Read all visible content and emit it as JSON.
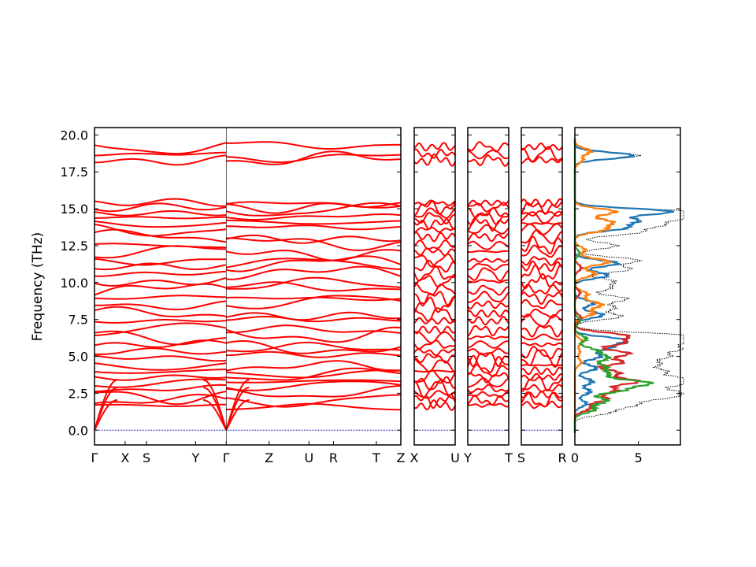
{
  "chart_data": [
    {
      "type": "line",
      "ylabel": "Frequency (THz)",
      "ylim": [
        -1.0,
        20.5
      ],
      "yticks": [
        0.0,
        2.5,
        5.0,
        7.5,
        10.0,
        12.5,
        15.0,
        17.5,
        20.0
      ],
      "ytick_labels": [
        "0.0",
        "2.5",
        "5.0",
        "7.5",
        "10.0",
        "12.5",
        "15.0",
        "17.5",
        "20.0"
      ],
      "line_color": "#ff0000",
      "zero_line_color": "#0000cc",
      "panels": [
        {
          "name": "path-gamma-to-z",
          "xticks": [
            0,
            0.1,
            0.17,
            0.33,
            0.43,
            0.57,
            0.7,
            0.78,
            0.92,
            1
          ],
          "xtick_labels": [
            "Γ",
            "X",
            "S",
            "Y",
            "Γ",
            "Z",
            "U",
            "R",
            "T",
            "Z"
          ],
          "discontinuity_at": 0.43
        },
        {
          "name": "path-x-u",
          "xticks": [
            0,
            1
          ],
          "xtick_labels": [
            "X",
            "U"
          ]
        },
        {
          "name": "path-y-t",
          "xticks": [
            0,
            1
          ],
          "xtick_labels": [
            "Y",
            "T"
          ]
        },
        {
          "name": "path-s-r",
          "xticks": [
            0,
            1
          ],
          "xtick_labels": [
            "S",
            "R"
          ]
        }
      ],
      "band_centers_thz": [
        19.2,
        18.7,
        18.3,
        15.4,
        15.1,
        14.7,
        14.4,
        14.0,
        13.6,
        13.1,
        12.5,
        12.1,
        11.5,
        11.1,
        10.6,
        10.1,
        9.5,
        9.0,
        8.5,
        7.9,
        7.4,
        6.8,
        6.3,
        5.8,
        5.3,
        4.9,
        4.4,
        4.0,
        3.6,
        3.2,
        2.8,
        2.4,
        2.0,
        1.7
      ],
      "acoustic_max_thz": 3.4
    },
    {
      "type": "line",
      "xlim": [
        0,
        8.3
      ],
      "xticks": [
        0,
        5
      ],
      "xtick_labels": [
        "0",
        "5"
      ],
      "ylim": [
        -1.0,
        20.5
      ],
      "series": [
        {
          "color": "#1f77b4",
          "peaks": [
            [
              18.6,
              4.6
            ],
            [
              14.8,
              7.5
            ],
            [
              14.2,
              4.6
            ],
            [
              13.7,
              3.8
            ],
            [
              11.3,
              3.4
            ],
            [
              10.5,
              2.6
            ],
            [
              8.6,
              1.5
            ],
            [
              7.8,
              2.2
            ],
            [
              6.1,
              3.9
            ],
            [
              5.6,
              2.6
            ],
            [
              5.0,
              2.0
            ],
            [
              4.2,
              1.7
            ],
            [
              3.3,
              1.4
            ],
            [
              2.6,
              1.2
            ],
            [
              1.8,
              0.9
            ]
          ]
        },
        {
          "color": "#ff7f0e",
          "peaks": [
            [
              18.9,
              1.2
            ],
            [
              18.3,
              0.6
            ],
            [
              14.8,
              3.2
            ],
            [
              14.1,
              2.8
            ],
            [
              13.6,
              2.3
            ],
            [
              12.2,
              0.8
            ],
            [
              11.4,
              2.7
            ],
            [
              10.6,
              1.6
            ],
            [
              9.2,
              1.0
            ],
            [
              8.5,
              2.1
            ],
            [
              7.9,
              1.4
            ],
            [
              6.0,
              0.6
            ],
            [
              5.3,
              0.4
            ],
            [
              4.6,
              0.5
            ]
          ]
        },
        {
          "color": "#2ca02c",
          "peaks": [
            [
              12.0,
              0.35
            ],
            [
              7.4,
              0.4
            ],
            [
              6.2,
              0.9
            ],
            [
              5.4,
              1.6
            ],
            [
              4.9,
              2.5
            ],
            [
              4.3,
              2.2
            ],
            [
              3.8,
              2.4
            ],
            [
              3.2,
              5.7
            ],
            [
              2.7,
              3.5
            ],
            [
              2.0,
              2.5
            ],
            [
              1.4,
              1.5
            ]
          ]
        },
        {
          "color": "#d62728",
          "peaks": [
            [
              11.0,
              0.5
            ],
            [
              9.3,
              0.4
            ],
            [
              7.6,
              0.5
            ],
            [
              6.4,
              3.9
            ],
            [
              5.9,
              3.6
            ],
            [
              5.2,
              4.2
            ],
            [
              4.6,
              3.7
            ],
            [
              3.9,
              3.4
            ],
            [
              3.3,
              4.9
            ],
            [
              2.7,
              3.1
            ],
            [
              2.1,
              2.4
            ],
            [
              1.5,
              1.2
            ]
          ]
        },
        {
          "color": "#000000",
          "line_style": "dotted",
          "peaks": [
            [
              18.6,
              5.0
            ],
            [
              14.8,
              8.1
            ],
            [
              14.4,
              7.8
            ],
            [
              13.9,
              6.2
            ],
            [
              13.4,
              4.8
            ],
            [
              12.5,
              3.3
            ],
            [
              11.5,
              5.0
            ],
            [
              10.9,
              4.3
            ],
            [
              10.1,
              2.9
            ],
            [
              9.6,
              2.6
            ],
            [
              8.9,
              4.1
            ],
            [
              8.3,
              3.0
            ],
            [
              7.7,
              3.6
            ],
            [
              6.4,
              8.1
            ],
            [
              6.0,
              7.9
            ],
            [
              5.5,
              7.4
            ],
            [
              5.0,
              6.6
            ],
            [
              4.5,
              5.8
            ],
            [
              4.0,
              6.3
            ],
            [
              3.5,
              7.2
            ],
            [
              3.1,
              6.8
            ],
            [
              2.6,
              6.6
            ],
            [
              2.2,
              6.0
            ],
            [
              1.7,
              4.3
            ],
            [
              1.2,
              2.6
            ]
          ]
        }
      ]
    }
  ]
}
